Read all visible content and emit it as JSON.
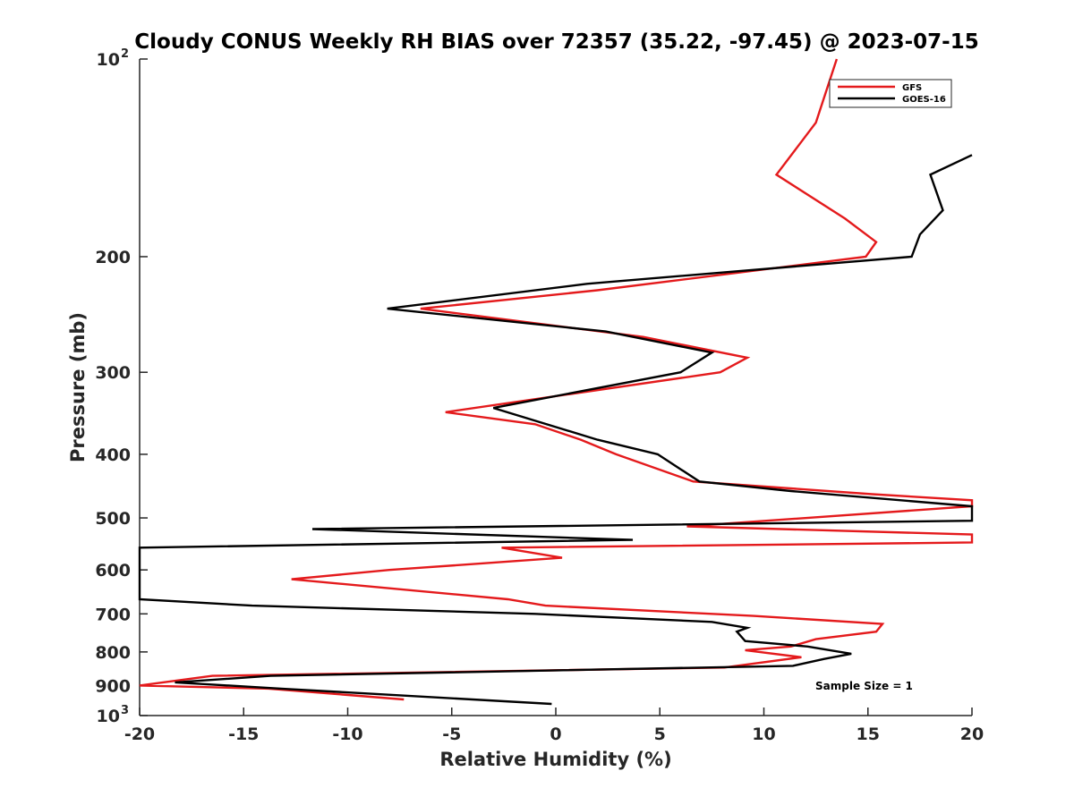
{
  "chart_data": {
    "type": "line",
    "title": "Cloudy CONUS Weekly RH BIAS over 72357 (35.22, -97.45) @ 2023-07-15",
    "xlabel": "Relative Humidity (%)",
    "ylabel": "Pressure (mb)",
    "xlim": [
      -20,
      20
    ],
    "ylim": [
      100,
      1000
    ],
    "y_scale": "log",
    "y_reversed": true,
    "x_ticks": [
      -20,
      -15,
      -10,
      -5,
      0,
      5,
      10,
      15,
      20
    ],
    "x_tick_labels": [
      "-20",
      "-15",
      "-10",
      "-5",
      "0",
      "5",
      "10",
      "15",
      "20"
    ],
    "y_ticks": [
      200,
      300,
      400,
      500,
      600,
      700,
      800,
      900
    ],
    "y_tick_labels": [
      "200",
      "300",
      "400",
      "500",
      "600",
      "700",
      "800",
      "900"
    ],
    "y_tick_exp": {
      "top": {
        "value": 100,
        "base": "10",
        "exp": "2"
      },
      "bottom": {
        "value": 1000,
        "base": "10",
        "exp": "3"
      }
    },
    "grid": false,
    "legend_position": "top-right",
    "annotation": "Sample Size = 1",
    "series": [
      {
        "name": "GFS",
        "color": "#e41a1c",
        "points": [
          [
            13.5,
            100
          ],
          [
            12.5,
            125
          ],
          [
            10.6,
            150
          ],
          [
            13.9,
            175
          ],
          [
            15.4,
            190
          ],
          [
            14.9,
            200
          ],
          [
            2.0,
            225
          ],
          [
            -6.5,
            240
          ],
          [
            4.2,
            265
          ],
          [
            9.2,
            285
          ],
          [
            7.9,
            300
          ],
          [
            -5.3,
            345
          ],
          [
            -1.0,
            360
          ],
          [
            1.2,
            380
          ],
          [
            2.9,
            400
          ],
          [
            6.6,
            440
          ],
          [
            15.2,
            460
          ],
          [
            20.0,
            470
          ],
          [
            20.0,
            480
          ],
          [
            6.3,
            515
          ],
          [
            20.0,
            530
          ],
          [
            20.0,
            545
          ],
          [
            -2.6,
            555
          ],
          [
            0.3,
            575
          ],
          [
            -8.0,
            600
          ],
          [
            -12.7,
            620
          ],
          [
            -8.0,
            640
          ],
          [
            -2.3,
            665
          ],
          [
            -0.5,
            680
          ],
          [
            9.5,
            705
          ],
          [
            15.7,
            725
          ],
          [
            15.4,
            745
          ],
          [
            12.5,
            765
          ],
          [
            11.3,
            785
          ],
          [
            9.1,
            795
          ],
          [
            11.8,
            815
          ],
          [
            8.1,
            845
          ],
          [
            -16.5,
            870
          ],
          [
            -20.0,
            900
          ],
          [
            -13.8,
            910
          ],
          [
            -7.3,
            945
          ]
        ]
      },
      {
        "name": "GOES-16",
        "color": "#000000",
        "points": [
          [
            20.0,
            140
          ],
          [
            18.0,
            150
          ],
          [
            18.6,
            170
          ],
          [
            17.5,
            185
          ],
          [
            17.1,
            200
          ],
          [
            1.5,
            220
          ],
          [
            -8.1,
            240
          ],
          [
            2.4,
            260
          ],
          [
            7.5,
            280
          ],
          [
            6.0,
            300
          ],
          [
            -3.0,
            340
          ],
          [
            2.0,
            380
          ],
          [
            4.9,
            400
          ],
          [
            6.9,
            440
          ],
          [
            11.3,
            455
          ],
          [
            20.0,
            480
          ],
          [
            20.0,
            505
          ],
          [
            -11.7,
            520
          ],
          [
            3.7,
            540
          ],
          [
            -20.0,
            555
          ],
          [
            -20.0,
            665
          ],
          [
            -14.6,
            680
          ],
          [
            -1.0,
            700
          ],
          [
            7.5,
            720
          ],
          [
            9.2,
            735
          ],
          [
            8.7,
            745
          ],
          [
            9.1,
            770
          ],
          [
            12.1,
            785
          ],
          [
            14.2,
            805
          ],
          [
            12.9,
            820
          ],
          [
            11.4,
            840
          ],
          [
            -13.7,
            870
          ],
          [
            -18.3,
            890
          ],
          [
            -13.2,
            910
          ],
          [
            -0.2,
            960
          ]
        ]
      }
    ]
  }
}
